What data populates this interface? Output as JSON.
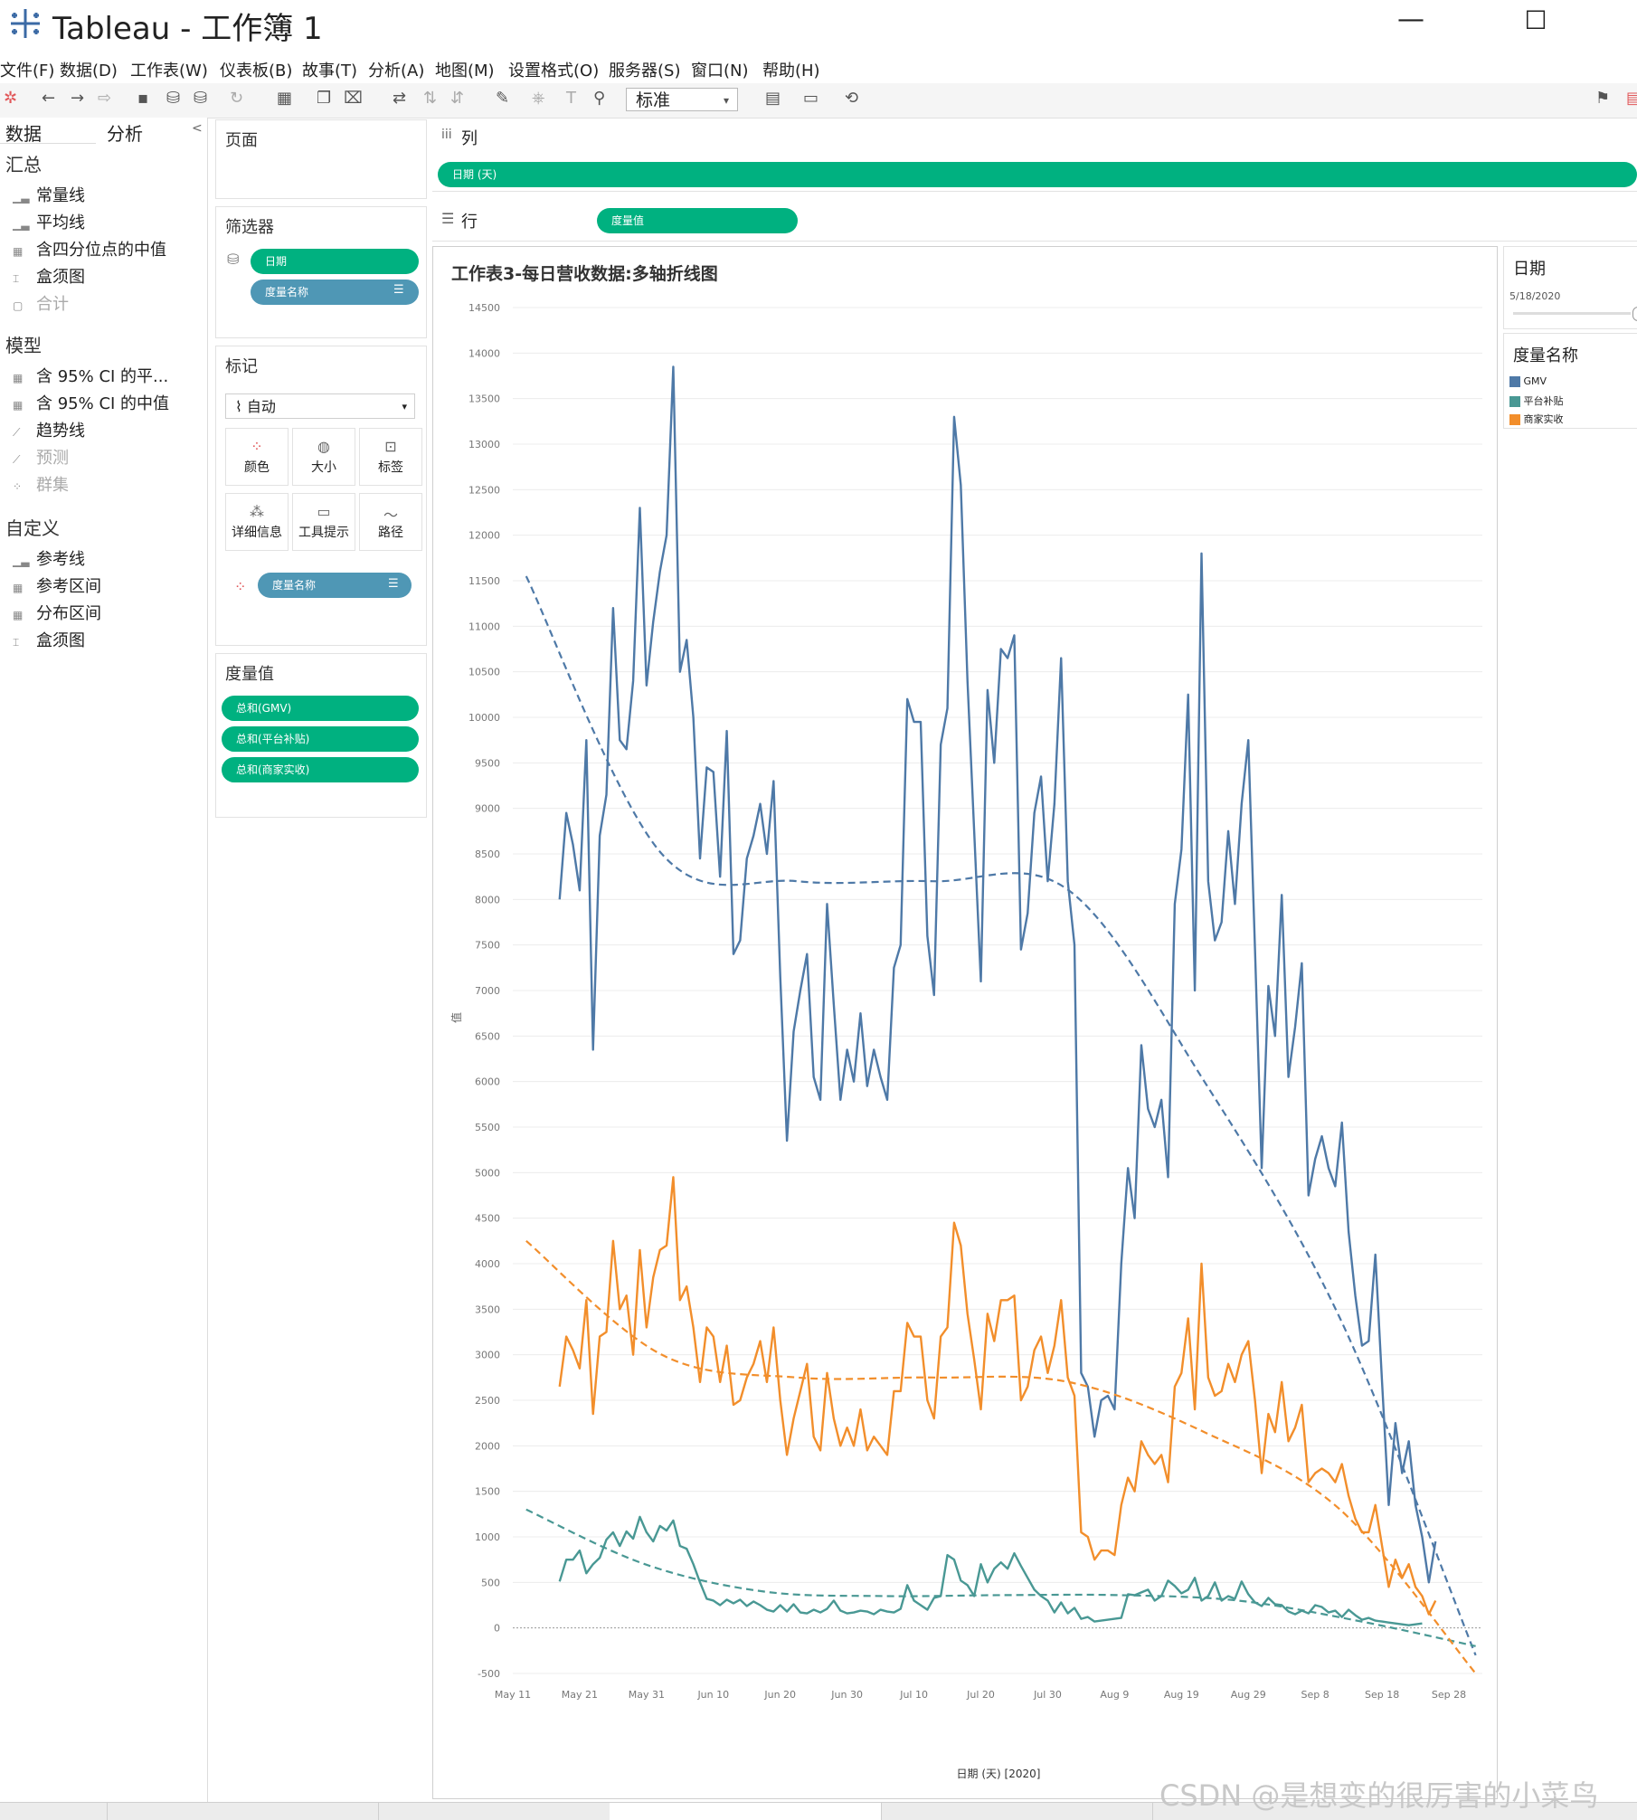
{
  "window": {
    "title": "Tableau - 工作簿 1",
    "minimize": "—",
    "maximize": "☐"
  },
  "menu": [
    "文件(F)",
    "数据(D)",
    "工作表(W)",
    "仪表板(B)",
    "故事(T)",
    "分析(A)",
    "地图(M)",
    "设置格式(O)",
    "服务器(S)",
    "窗口(N)",
    "帮助(H)"
  ],
  "toolbar": {
    "fit_select": "标准"
  },
  "left_pane": {
    "tabs": [
      "数据",
      "分析"
    ],
    "collapse": "<",
    "sections": [
      {
        "title": "汇总",
        "items": [
          {
            "label": "常量线",
            "icon": "bar-icon",
            "disabled": false
          },
          {
            "label": "平均线",
            "icon": "bar-icon",
            "disabled": false
          },
          {
            "label": "含四分位点的中值",
            "icon": "band-icon",
            "disabled": false
          },
          {
            "label": "盒须图",
            "icon": "box-icon",
            "disabled": false
          },
          {
            "label": "合计",
            "icon": "total-icon",
            "disabled": true
          }
        ]
      },
      {
        "title": "模型",
        "items": [
          {
            "label": "含 95% CI 的平...",
            "icon": "band-icon",
            "disabled": false
          },
          {
            "label": "含 95% CI 的中值",
            "icon": "band-icon",
            "disabled": false
          },
          {
            "label": "趋势线",
            "icon": "trend-icon",
            "disabled": false
          },
          {
            "label": "预测",
            "icon": "forecast-icon",
            "disabled": true
          },
          {
            "label": "群集",
            "icon": "cluster-icon",
            "disabled": true
          }
        ]
      },
      {
        "title": "自定义",
        "items": [
          {
            "label": "参考线",
            "icon": "bar-icon",
            "disabled": false
          },
          {
            "label": "参考区间",
            "icon": "band-icon",
            "disabled": false
          },
          {
            "label": "分布区间",
            "icon": "band-icon",
            "disabled": false
          },
          {
            "label": "盒须图",
            "icon": "box-icon",
            "disabled": false
          }
        ]
      }
    ]
  },
  "cards": {
    "pages": {
      "title": "页面"
    },
    "filters": {
      "title": "筛选器",
      "pills": [
        "日期",
        "度量名称"
      ]
    },
    "marks": {
      "title": "标记",
      "mark_type": "自动",
      "buttons": [
        "颜色",
        "大小",
        "标签",
        "详细信息",
        "工具提示",
        "路径"
      ],
      "pill": "度量名称"
    },
    "measure_values": {
      "title": "度量值",
      "pills": [
        "总和(GMV)",
        "总和(平台补贴)",
        "总和(商家实收)"
      ]
    }
  },
  "shelves": {
    "columns": {
      "label": "列",
      "pill": "日期 (天)"
    },
    "rows": {
      "label": "行",
      "pill": "度量值"
    }
  },
  "legends": {
    "date": {
      "title": "日期",
      "value": "5/18/2020"
    },
    "measure": {
      "title": "度量名称",
      "items": [
        {
          "label": "GMV",
          "color": "#4e79a7"
        },
        {
          "label": "平台补贴",
          "color": "#499894"
        },
        {
          "label": "商家实收",
          "color": "#f28e2b"
        }
      ]
    }
  },
  "watermark": "CSDN @是想变的很厉害的小菜鸟",
  "chart_data": {
    "type": "line",
    "title": "工作表3-每日营收数据:多轴折线图",
    "xlabel": "日期 (天) [2020]",
    "ylabel": "值",
    "ylim": [
      -500,
      14500
    ],
    "yticks": [
      -500,
      0,
      500,
      1000,
      1500,
      2000,
      2500,
      3000,
      3500,
      4000,
      4500,
      5000,
      5500,
      6000,
      6500,
      7000,
      7500,
      8000,
      8500,
      9000,
      9500,
      10000,
      10500,
      11000,
      11500,
      12000,
      12500,
      13000,
      13500,
      14000,
      14500
    ],
    "xrange_days": [
      "2020-05-11",
      "2020-10-03"
    ],
    "xticks": [
      {
        "label": "May 11",
        "date": "2020-05-11"
      },
      {
        "label": "May 21",
        "date": "2020-05-21"
      },
      {
        "label": "May 31",
        "date": "2020-05-31"
      },
      {
        "label": "Jun 10",
        "date": "2020-06-10"
      },
      {
        "label": "Jun 20",
        "date": "2020-06-20"
      },
      {
        "label": "Jun 30",
        "date": "2020-06-30"
      },
      {
        "label": "Jul 10",
        "date": "2020-07-10"
      },
      {
        "label": "Jul 20",
        "date": "2020-07-20"
      },
      {
        "label": "Jul 30",
        "date": "2020-07-30"
      },
      {
        "label": "Aug 9",
        "date": "2020-08-09"
      },
      {
        "label": "Aug 19",
        "date": "2020-08-19"
      },
      {
        "label": "Aug 29",
        "date": "2020-08-29"
      },
      {
        "label": "Sep 8",
        "date": "2020-09-08"
      },
      {
        "label": "Sep 18",
        "date": "2020-09-18"
      },
      {
        "label": "Sep 28",
        "date": "2020-09-28"
      }
    ],
    "grid": true,
    "legend": "right",
    "series": [
      {
        "name": "GMV",
        "color": "#4e79a7",
        "start": "2020-05-18",
        "values": [
          8000,
          8950,
          8600,
          8100,
          9750,
          6350,
          8700,
          9150,
          11200,
          9750,
          9650,
          10400,
          12300,
          10350,
          11050,
          11600,
          12000,
          13850,
          10500,
          10850,
          10000,
          8450,
          9450,
          9400,
          8250,
          9850,
          7400,
          7550,
          8450,
          8700,
          9050,
          8500,
          9300,
          7150,
          5350,
          6550,
          7000,
          7400,
          6050,
          5800,
          7950,
          6850,
          5800,
          6350,
          6000,
          6750,
          5950,
          6350,
          6050,
          5800,
          7250,
          7500,
          10200,
          9950,
          9950,
          7600,
          6950,
          9700,
          10100,
          13300,
          12550,
          10400,
          8750,
          7100,
          10300,
          9500,
          10750,
          10650,
          10900,
          7450,
          7850,
          8950,
          9350,
          8200,
          9050,
          10650,
          8200,
          7500,
          2800,
          2650,
          2100,
          2500,
          2550,
          2400,
          4000,
          5050,
          4500,
          6400,
          5700,
          5500,
          5800,
          4950,
          7950,
          8550,
          10250,
          7000,
          11800,
          8200,
          7550,
          7750,
          8750,
          7950,
          9050,
          9750,
          7450,
          5050,
          7050,
          6500,
          8050,
          6050,
          6600,
          7300,
          4750,
          5150,
          5400,
          5050,
          4850,
          5550,
          4350,
          3650,
          3100,
          3150,
          4100,
          2700,
          1350,
          2250,
          1700,
          2050,
          1350,
          1000,
          500,
          950
        ]
      },
      {
        "name": "平台补贴",
        "color": "#499894",
        "start": "2020-05-18",
        "values": [
          510,
          750,
          750,
          850,
          600,
          700,
          770,
          970,
          1050,
          900,
          1060,
          980,
          1220,
          1050,
          950,
          1120,
          1070,
          1180,
          900,
          870,
          700,
          500,
          320,
          300,
          250,
          310,
          270,
          310,
          240,
          290,
          250,
          200,
          180,
          250,
          180,
          260,
          170,
          160,
          200,
          170,
          210,
          300,
          190,
          160,
          170,
          190,
          180,
          150,
          200,
          180,
          170,
          210,
          470,
          300,
          250,
          200,
          330,
          350,
          800,
          750,
          520,
          470,
          350,
          700,
          500,
          650,
          720,
          650,
          820,
          680,
          550,
          420,
          350,
          300,
          170,
          280,
          160,
          220,
          100,
          120,
          70,
          80,
          90,
          100,
          110,
          370,
          360,
          390,
          420,
          300,
          350,
          520,
          460,
          380,
          420,
          550,
          300,
          350,
          500,
          300,
          350,
          320,
          510,
          370,
          280,
          240,
          330,
          260,
          250,
          180,
          150,
          190,
          160,
          250,
          230,
          170,
          190,
          120,
          200,
          140,
          90,
          110,
          80,
          70,
          60,
          50,
          40,
          30,
          40,
          50
        ]
      },
      {
        "name": "商家实收",
        "color": "#f28e2b",
        "start": "2020-05-18",
        "values": [
          2650,
          3200,
          3050,
          2850,
          3600,
          2350,
          3200,
          3250,
          4250,
          3500,
          3650,
          3000,
          4150,
          3300,
          3850,
          4150,
          4200,
          4950,
          3600,
          3750,
          3300,
          2700,
          3300,
          3200,
          2700,
          3100,
          2450,
          2500,
          2750,
          2900,
          3150,
          2700,
          3300,
          2500,
          1900,
          2300,
          2600,
          2900,
          2100,
          1950,
          2800,
          2300,
          2000,
          2200,
          2000,
          2400,
          1950,
          2100,
          2000,
          1900,
          2600,
          2600,
          3350,
          3200,
          3200,
          2500,
          2300,
          3200,
          3300,
          4450,
          4200,
          3450,
          2950,
          2400,
          3450,
          3150,
          3600,
          3600,
          3650,
          2500,
          2650,
          3050,
          3200,
          2800,
          3100,
          3600,
          2750,
          2550,
          1050,
          1000,
          750,
          850,
          850,
          800,
          1350,
          1650,
          1500,
          2050,
          1900,
          1800,
          1900,
          1600,
          2650,
          2800,
          3400,
          2400,
          4000,
          2750,
          2550,
          2600,
          2900,
          2700,
          3000,
          3150,
          2500,
          1700,
          2350,
          2150,
          2700,
          2050,
          2200,
          2450,
          1600,
          1700,
          1750,
          1700,
          1600,
          1800,
          1450,
          1200,
          1050,
          1050,
          1350,
          900,
          450,
          750,
          550,
          700,
          450,
          350,
          150,
          300
        ]
      },
      {
        "name": "GMV趋势线",
        "color": "#4e79a7",
        "dashed": true,
        "start": "2020-05-13",
        "end": "2020-10-02",
        "values": [
          11550,
          8500,
          8200,
          8200,
          8100,
          6000,
          3400,
          -300
        ]
      },
      {
        "name": "平台补贴趋势线",
        "color": "#499894",
        "dashed": true,
        "start": "2020-05-13",
        "end": "2020-10-02",
        "values": [
          1300,
          700,
          400,
          350,
          360,
          360,
          300,
          80,
          -200
        ]
      },
      {
        "name": "商家实收趋势线",
        "color": "#f28e2b",
        "dashed": true,
        "start": "2020-05-13",
        "end": "2020-10-02",
        "values": [
          4250,
          3000,
          2750,
          2750,
          2700,
          2150,
          1300,
          -500
        ]
      }
    ]
  }
}
